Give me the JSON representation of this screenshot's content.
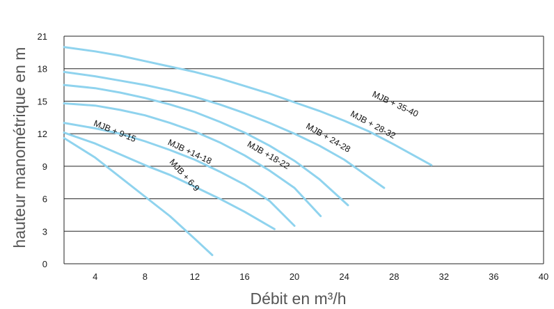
{
  "chart_data": {
    "type": "line",
    "xlabel": "Débit en m³/h",
    "ylabel": "hauteur manométrique en m",
    "xlim": [
      1.5,
      40
    ],
    "ylim": [
      0,
      21
    ],
    "xticks": [
      4,
      8,
      12,
      16,
      20,
      24,
      28,
      32,
      36,
      40
    ],
    "yticks": [
      0,
      3,
      6,
      9,
      12,
      15,
      18,
      21
    ],
    "grid": "horizontal",
    "curve_color": "#8fd3ee",
    "series": [
      {
        "name": "MJB + 6-9",
        "x": [
          1.5,
          4,
          6,
          8,
          10,
          12,
          13.4
        ],
        "y": [
          11.6,
          9.8,
          8.0,
          6.2,
          4.4,
          2.3,
          0.8
        ]
      },
      {
        "name": "MJB + 9-15",
        "x": [
          1.5,
          4,
          6,
          8,
          10,
          12,
          14,
          16,
          18.4
        ],
        "y": [
          12.1,
          11.1,
          10.1,
          9.1,
          8.2,
          7.1,
          6.0,
          4.8,
          3.2
        ]
      },
      {
        "name": "MJB +14-18",
        "x": [
          1.5,
          4,
          6,
          8,
          10,
          12,
          14,
          16,
          18,
          20
        ],
        "y": [
          13.0,
          12.5,
          12.0,
          11.3,
          10.5,
          9.6,
          8.5,
          7.3,
          5.8,
          3.5
        ]
      },
      {
        "name": "MJB +18-22",
        "x": [
          1.5,
          4,
          6,
          8,
          10,
          12,
          14,
          16,
          18,
          20,
          22.1
        ],
        "y": [
          14.8,
          14.6,
          14.2,
          13.7,
          13.0,
          12.2,
          11.2,
          10.0,
          8.6,
          7.0,
          4.4
        ]
      },
      {
        "name": "MJB + 24-28",
        "x": [
          1.5,
          4,
          6,
          8,
          10,
          12,
          14,
          16,
          18,
          20,
          22,
          24.3
        ],
        "y": [
          16.5,
          16.2,
          15.8,
          15.3,
          14.7,
          14.0,
          13.1,
          12.1,
          10.9,
          9.5,
          7.8,
          5.4
        ]
      },
      {
        "name": "MJB + 28-32",
        "x": [
          1.5,
          4,
          6,
          8,
          10,
          12,
          14,
          16,
          18,
          20,
          22,
          24,
          27.2
        ],
        "y": [
          17.7,
          17.3,
          16.9,
          16.5,
          16.0,
          15.4,
          14.7,
          13.9,
          13.0,
          12.0,
          10.9,
          9.6,
          7.0
        ]
      },
      {
        "name": "MJB + 35-40",
        "x": [
          1.5,
          4,
          6,
          8,
          10,
          12,
          14,
          16,
          18,
          20,
          22,
          24,
          26,
          28,
          31
        ],
        "y": [
          20.0,
          19.6,
          19.2,
          18.7,
          18.2,
          17.7,
          17.1,
          16.4,
          15.7,
          14.9,
          14.1,
          13.2,
          12.2,
          11.0,
          9.1
        ]
      }
    ]
  }
}
